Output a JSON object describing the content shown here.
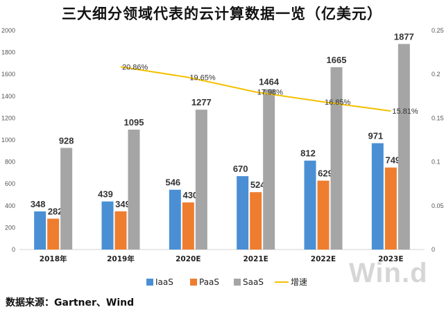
{
  "title": "三大细分领域代表的云计算数据一览（亿美元）",
  "source": "数据来源：Gartner、Wind",
  "watermark": "Win.d",
  "chart_data": {
    "type": "bar",
    "categories": [
      "2018年",
      "2019年",
      "2020E",
      "2021E",
      "2022E",
      "2023E"
    ],
    "series": [
      {
        "name": "IaaS",
        "type": "bar",
        "axis": "left",
        "color": "#4a8fd4",
        "values": [
          348,
          439,
          546,
          670,
          812,
          971
        ]
      },
      {
        "name": "PaaS",
        "type": "bar",
        "axis": "left",
        "color": "#ef7d2f",
        "values": [
          282,
          349,
          430,
          524,
          629,
          749
        ]
      },
      {
        "name": "SaaS",
        "type": "bar",
        "axis": "left",
        "color": "#a5a5a5",
        "values": [
          928,
          1095,
          1277,
          1464,
          1665,
          1877
        ]
      },
      {
        "name": "增速",
        "type": "line",
        "axis": "right",
        "color": "#f5c000",
        "values": [
          null,
          0.2086,
          0.1965,
          0.1798,
          0.1685,
          0.1581
        ],
        "labels": [
          "",
          "20.86%",
          "19.65%",
          "17.98%",
          "16.85%",
          "15.81%"
        ]
      }
    ],
    "y_left": {
      "min": 0,
      "max": 2000,
      "step": 200,
      "ticks": [
        "0",
        "200",
        "400",
        "600",
        "800",
        "1000",
        "1200",
        "1400",
        "1600",
        "1800",
        "2000"
      ]
    },
    "y_right": {
      "min": 0,
      "max": 0.25,
      "step": 0.05,
      "ticks": [
        "0",
        "0.05",
        "0.1",
        "0.15",
        "0.2",
        "0.25"
      ]
    },
    "grid": false,
    "legend": "bottom-center"
  }
}
